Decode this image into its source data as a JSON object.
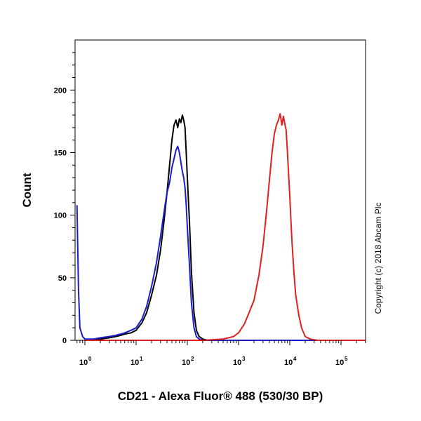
{
  "chart_data": {
    "type": "line",
    "xlabel": "CD21 - Alexa Fluor® 488 (530/30 BP)",
    "ylabel": "Count",
    "ylim": [
      0,
      240
    ],
    "xscale": "log",
    "x_ticks": [
      {
        "base": "10",
        "exp": "0"
      },
      {
        "base": "10",
        "exp": "1"
      },
      {
        "base": "10",
        "exp": "2"
      },
      {
        "base": "10",
        "exp": "3"
      },
      {
        "base": "10",
        "exp": "4"
      },
      {
        "base": "10",
        "exp": "5"
      }
    ],
    "y_ticks": [
      "0",
      "50",
      "100",
      "150",
      "200"
    ],
    "annotation": "Copyright (c) 2018 Abcam Plc",
    "grid": false,
    "series": [
      {
        "color": "#000000",
        "x": [
          1,
          1.5,
          2,
          3,
          4,
          5,
          6,
          8,
          10,
          13,
          16,
          20,
          25,
          30,
          35,
          40,
          45,
          50,
          55,
          60,
          65,
          70,
          75,
          80,
          85,
          90,
          95,
          100,
          110,
          120,
          135,
          150,
          170,
          200,
          250,
          350,
          500,
          1000,
          10000,
          300000
        ],
        "y": [
          0,
          1,
          1,
          2,
          3,
          4,
          5,
          6,
          8,
          14,
          22,
          36,
          52,
          72,
          95,
          118,
          140,
          160,
          172,
          176,
          170,
          177,
          174,
          180,
          176,
          170,
          150,
          130,
          95,
          55,
          22,
          8,
          3,
          1,
          0,
          0,
          0,
          0,
          0,
          0
        ]
      },
      {
        "color": "#1c1ccf",
        "x": [
          0.7,
          0.75,
          0.8,
          0.9,
          1,
          1.5,
          2,
          3,
          4,
          5,
          6,
          8,
          10,
          13,
          16,
          20,
          25,
          30,
          35,
          40,
          45,
          50,
          55,
          60,
          65,
          70,
          75,
          80,
          85,
          90,
          95,
          100,
          110,
          120,
          135,
          150,
          170,
          200,
          300,
          1000,
          10000,
          300000
        ],
        "y": [
          108,
          40,
          10,
          3,
          1,
          1,
          2,
          3,
          4,
          5,
          6,
          8,
          10,
          17,
          27,
          43,
          62,
          83,
          102,
          118,
          126,
          138,
          145,
          152,
          155,
          150,
          142,
          135,
          130,
          122,
          108,
          90,
          60,
          30,
          10,
          3,
          1,
          0,
          0,
          0,
          0,
          0
        ]
      },
      {
        "color": "#e02020",
        "x": [
          1,
          200,
          500,
          800,
          1000,
          1300,
          1600,
          2000,
          2500,
          3000,
          3500,
          4000,
          4500,
          5000,
          5500,
          6000,
          6500,
          7000,
          7500,
          8000,
          8500,
          9000,
          10000,
          11000,
          12000,
          13000,
          15000,
          17000,
          20000,
          25000,
          35000,
          300000
        ],
        "y": [
          0,
          0,
          1,
          3,
          6,
          13,
          22,
          32,
          52,
          75,
          102,
          128,
          150,
          165,
          172,
          176,
          181,
          172,
          179,
          173,
          168,
          150,
          115,
          80,
          55,
          37,
          20,
          10,
          3,
          1,
          0,
          0
        ]
      }
    ]
  }
}
